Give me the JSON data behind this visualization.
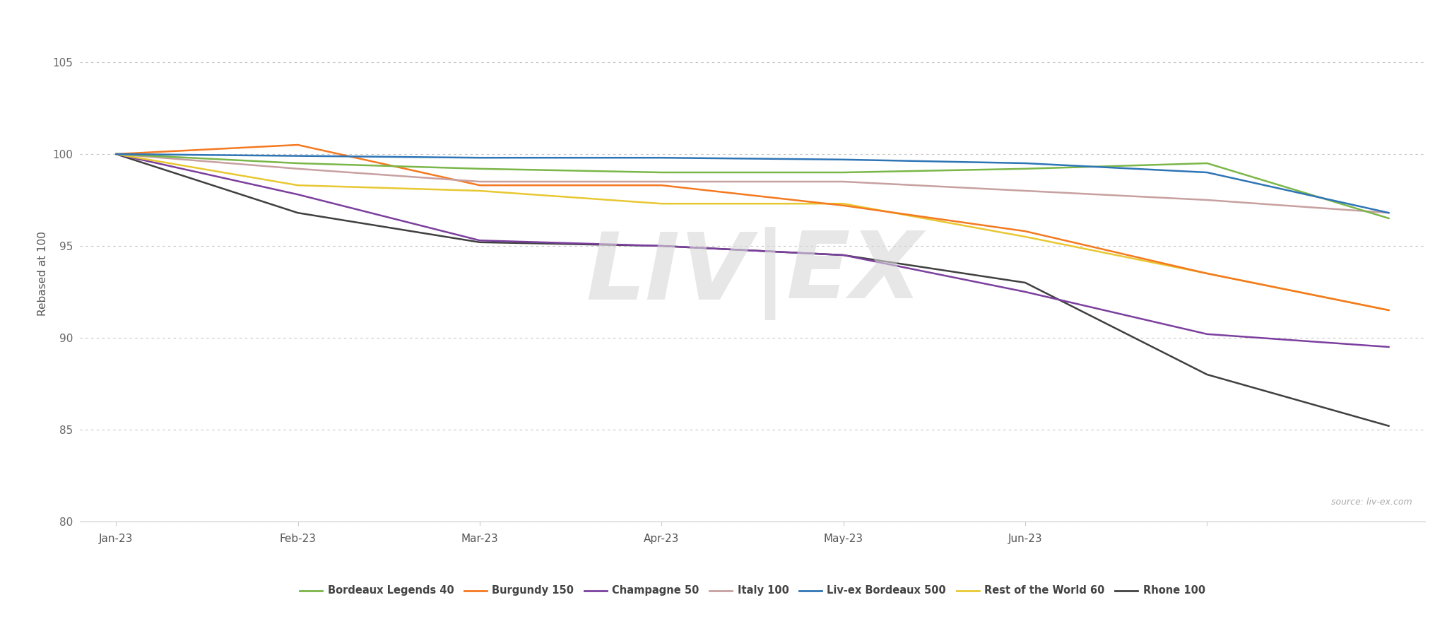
{
  "title": "",
  "ylabel": "Rebased at 100",
  "source_text": "source: liv-ex.com",
  "watermark": "LIV|EX",
  "background_color": "#ffffff",
  "plot_bg_color": "#ffffff",
  "ylim": [
    80,
    107
  ],
  "yticks": [
    80,
    85,
    90,
    95,
    100,
    105
  ],
  "xtick_labels": [
    "Jan-23",
    "Feb-23",
    "Mar-23",
    "Apr-23",
    "May-23",
    "Jun-23"
  ],
  "grid_color": "#aaaaaa",
  "series": {
    "Bordeaux Legends 40": {
      "color": "#7ab648",
      "data": [
        100.0,
        99.5,
        99.2,
        99.0,
        99.0,
        99.2,
        99.5,
        96.5
      ]
    },
    "Burgundy 150": {
      "color": "#f47920",
      "data": [
        100.0,
        100.5,
        98.3,
        98.3,
        97.2,
        95.8,
        93.5,
        91.5
      ]
    },
    "Champagne 50": {
      "color": "#7b3f9e",
      "data": [
        100.0,
        97.8,
        95.3,
        95.0,
        94.5,
        92.5,
        90.2,
        89.5
      ]
    },
    "Italy 100": {
      "color": "#c8a0a0",
      "data": [
        100.0,
        99.2,
        98.5,
        98.5,
        98.5,
        98.0,
        97.5,
        96.8
      ]
    },
    "Liv-ex Bordeaux 500": {
      "color": "#2e75b6",
      "data": [
        100.0,
        99.9,
        99.8,
        99.8,
        99.7,
        99.5,
        99.0,
        96.8
      ]
    },
    "Rest of the World 60": {
      "color": "#e8c832",
      "data": [
        100.0,
        98.3,
        98.0,
        97.3,
        97.3,
        95.5,
        93.5,
        91.5
      ]
    },
    "Rhone 100": {
      "color": "#404040",
      "data": [
        100.0,
        96.8,
        95.2,
        95.0,
        94.5,
        93.0,
        88.0,
        85.2
      ]
    }
  }
}
